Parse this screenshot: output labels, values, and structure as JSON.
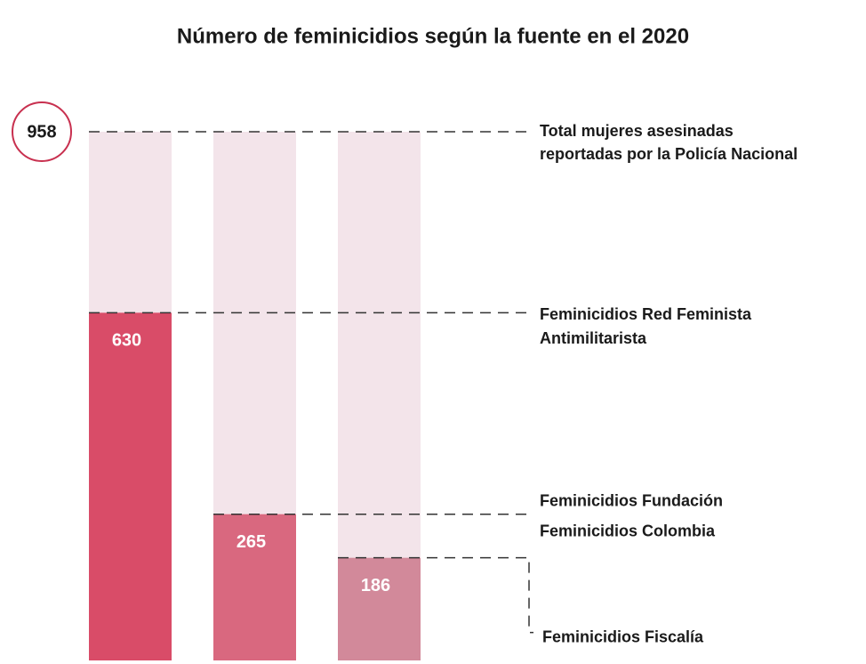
{
  "chart_data": {
    "type": "bar",
    "title": "Número de feminicidios según la fuente en el 2020",
    "total": 958,
    "total_label": [
      "Total mujeres asesinadas",
      "reportadas por la Policía Nacional"
    ],
    "total_color": "#f3e4ea",
    "categories": [
      [
        "Feminicidios Red Feminista",
        "Antimilitarista"
      ],
      [
        "Feminicidios Fundación",
        "Feminicidios Colombia"
      ],
      [
        "Feminicidios Fiscalía"
      ]
    ],
    "values": [
      630,
      265,
      186
    ],
    "colors": [
      "#d94c68",
      "#d9687f",
      "#d2899a"
    ]
  }
}
